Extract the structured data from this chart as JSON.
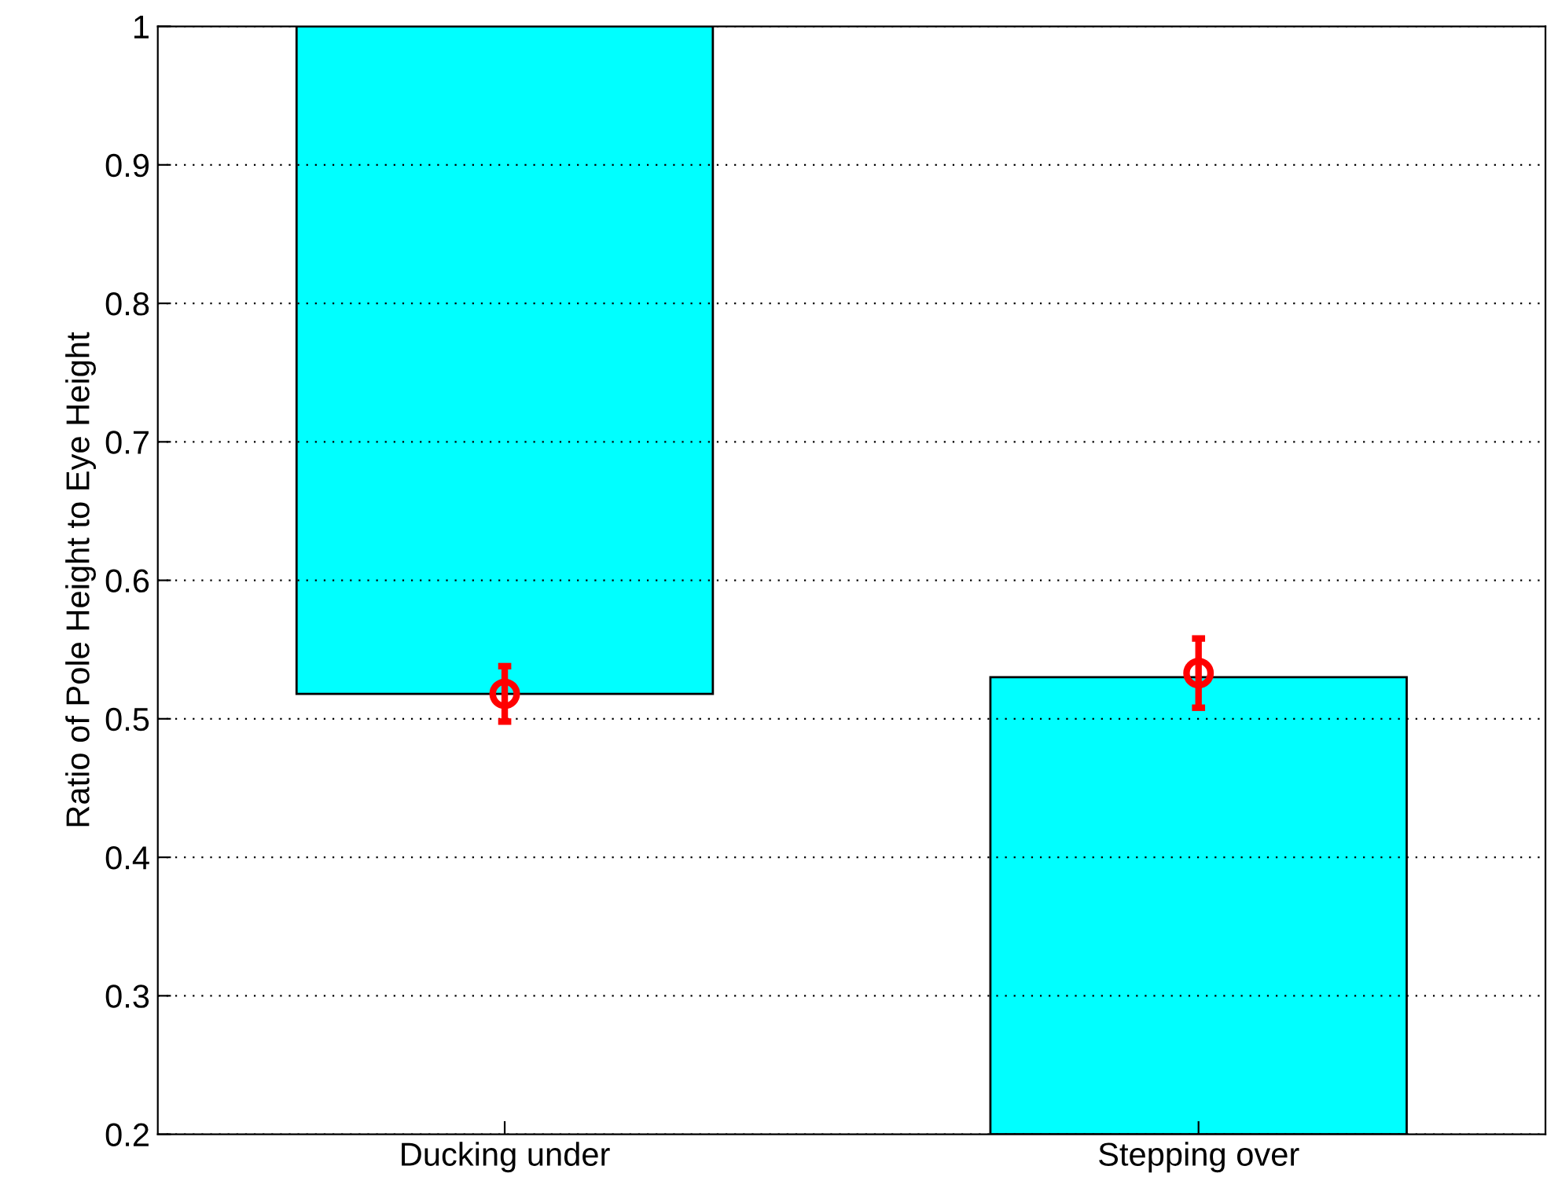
{
  "chart_data": {
    "type": "bar",
    "ylabel": "Ratio of Pole Height to Eye Height",
    "categories": [
      "Ducking under",
      "Stepping over"
    ],
    "series": [
      {
        "color": "#00ffff",
        "values": [
          0.482,
          0.33
        ],
        "base": [
          0.518,
          0.2
        ]
      },
      {
        "type": "scatter",
        "color": "#ff0000",
        "x": [
          "Ducking under",
          "Stepping over"
        ],
        "values": [
          0.518,
          0.533
        ],
        "errors": [
          0.02,
          0.025
        ],
        "marker": "circle"
      }
    ],
    "ylim": [
      0.2,
      1
    ],
    "yticks": [
      0.2,
      0.3,
      0.4,
      0.5,
      0.6,
      0.7,
      0.8,
      0.9,
      1
    ],
    "grid": "y"
  }
}
